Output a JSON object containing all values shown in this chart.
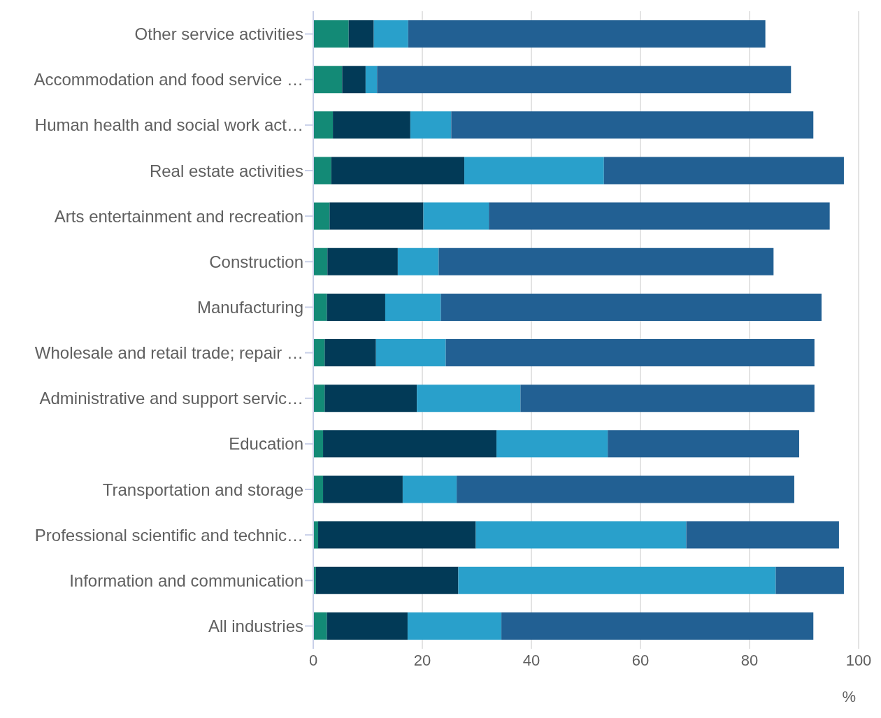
{
  "chart_data": {
    "type": "bar",
    "orientation": "horizontal",
    "stacked": true,
    "categories": [
      "Other service activities",
      "Accommodation and food service …",
      "Human health and social work act…",
      "Real estate activities",
      "Arts entertainment and recreation",
      "Construction",
      "Manufacturing",
      "Wholesale and retail trade; repair …",
      "Administrative and support servic…",
      "Education",
      "Transportation and storage",
      "Professional scientific and technic…",
      "Information and communication",
      "All industries"
    ],
    "series": [
      {
        "color": "#138a76",
        "values": [
          6.5,
          5.3,
          3.6,
          3.3,
          3.0,
          2.6,
          2.5,
          2.1,
          2.1,
          1.8,
          1.8,
          0.9,
          0.5,
          2.5
        ]
      },
      {
        "color": "#023a57",
        "values": [
          4.6,
          4.3,
          14.2,
          24.4,
          17.2,
          12.9,
          10.7,
          9.4,
          16.9,
          31.8,
          14.6,
          28.9,
          26.1,
          14.8
        ]
      },
      {
        "color": "#29a0cb",
        "values": [
          6.3,
          2.1,
          7.5,
          25.6,
          12.0,
          7.5,
          10.2,
          12.8,
          19.0,
          20.4,
          9.9,
          38.6,
          58.2,
          17.2
        ]
      },
      {
        "color": "#226093",
        "values": [
          65.5,
          75.9,
          66.4,
          44.0,
          62.5,
          61.4,
          69.8,
          67.6,
          53.9,
          35.1,
          61.9,
          28.0,
          12.5,
          57.2
        ]
      }
    ],
    "xlabel": "%",
    "xlim": [
      0,
      100
    ],
    "xticks": [
      0,
      20,
      40,
      60,
      80,
      100
    ],
    "grid": "x",
    "legend": false
  }
}
